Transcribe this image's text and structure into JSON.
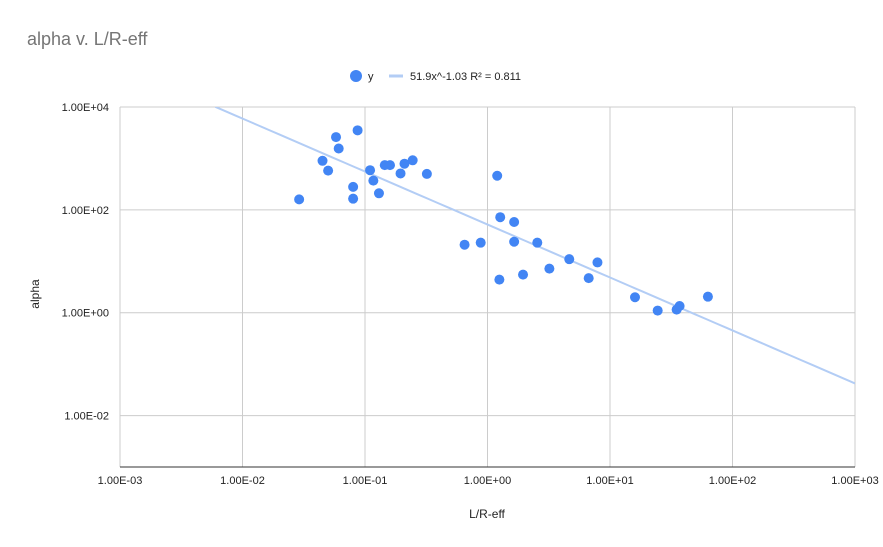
{
  "chart_data": {
    "type": "scatter",
    "title": "alpha v. L/R-eff",
    "xlabel": "L/R-eff",
    "ylabel": "alpha",
    "x_scale": "log",
    "y_scale": "log",
    "xlim": [
      0.001,
      1000
    ],
    "ylim": [
      0.001,
      10000
    ],
    "x_ticks": [
      "1.00E-03",
      "1.00E-02",
      "1.00E-01",
      "1.00E+00",
      "1.00E+01",
      "1.00E+02",
      "1.00E+03"
    ],
    "y_ticks": [
      "1.00E-02",
      "1.00E+00",
      "1.00E+02",
      "1.00E+04"
    ],
    "x_tick_values": [
      0.001,
      0.01,
      0.1,
      1,
      10,
      100,
      1000
    ],
    "y_tick_values": [
      0.01,
      1,
      100,
      10000
    ],
    "grid": true,
    "legend": {
      "position": "top",
      "points_label": "y",
      "trend_label": "51.9x^-1.03 R² = 0.811"
    },
    "colors": {
      "points": "#4285f4",
      "trendline": "#b3cdf5",
      "grid": "#cccccc",
      "title": "#757575"
    },
    "trendline": {
      "type": "power",
      "coefficient": 51.9,
      "exponent": -1.03,
      "r2": 0.811,
      "x_range": [
        0.006,
        1000
      ]
    },
    "series": [
      {
        "name": "y",
        "points": [
          [
            0.029,
            160
          ],
          [
            0.045,
            900
          ],
          [
            0.05,
            580
          ],
          [
            0.058,
            2600
          ],
          [
            0.061,
            1560
          ],
          [
            0.08,
            280
          ],
          [
            0.08,
            165
          ],
          [
            0.087,
            3520
          ],
          [
            0.11,
            590
          ],
          [
            0.117,
            370
          ],
          [
            0.13,
            210
          ],
          [
            0.145,
            740
          ],
          [
            0.16,
            740
          ],
          [
            0.195,
            510
          ],
          [
            0.21,
            790
          ],
          [
            0.245,
            920
          ],
          [
            0.32,
            500
          ],
          [
            0.65,
            21
          ],
          [
            0.88,
            23
          ],
          [
            1.2,
            460
          ],
          [
            1.25,
            4.4
          ],
          [
            1.27,
            72
          ],
          [
            1.65,
            58
          ],
          [
            1.65,
            24
          ],
          [
            1.95,
            5.5
          ],
          [
            2.55,
            23
          ],
          [
            3.2,
            7.2
          ],
          [
            4.65,
            11
          ],
          [
            6.7,
            4.7
          ],
          [
            7.9,
            9.5
          ],
          [
            16,
            2.0
          ],
          [
            24.5,
            1.1
          ],
          [
            35,
            1.15
          ],
          [
            37,
            1.35
          ],
          [
            63,
            2.05
          ]
        ]
      }
    ]
  }
}
